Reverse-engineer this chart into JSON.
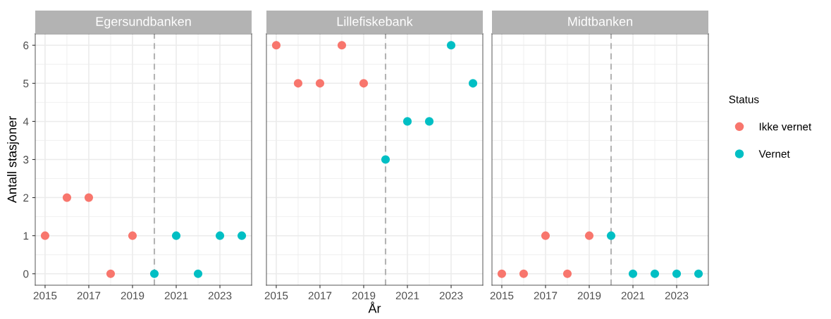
{
  "chart_data": [
    {
      "type": "scatter",
      "title": "Egersundbanken",
      "ylabel": "Antall stasjoner",
      "marker": "circle",
      "grid": true,
      "tick_labels": "xy",
      "legend": "right",
      "legend_title": "Status",
      "xlim": [
        2014.55,
        2024.45
      ],
      "ylim": [
        -0.3,
        6.3
      ],
      "xticks": [
        2015,
        2017,
        2019,
        2021,
        2023
      ],
      "yticks": [
        0,
        1,
        2,
        3,
        4,
        5,
        6
      ],
      "ref_lines": [
        {
          "axis": "x",
          "value": 2020,
          "color": "#b3b3b3",
          "line_style": "dashed"
        }
      ],
      "series": [
        {
          "name": "Ikke vernet",
          "color": "#f8766d",
          "x": [
            2015,
            2016,
            2017,
            2018,
            2019
          ],
          "values": [
            1,
            2,
            2,
            0,
            1
          ]
        },
        {
          "name": "Vernet",
          "color": "#00bfc4",
          "x": [
            2020,
            2021,
            2022,
            2023,
            2024
          ],
          "values": [
            0,
            1,
            0,
            1,
            1
          ]
        }
      ]
    },
    {
      "type": "scatter",
      "title": "Lillefiskebank",
      "xlabel": "År",
      "marker": "circle",
      "grid": true,
      "tick_labels": "x",
      "xlim": [
        2014.55,
        2024.45
      ],
      "ylim": [
        -0.3,
        6.3
      ],
      "xticks": [
        2015,
        2017,
        2019,
        2021,
        2023
      ],
      "yticks": [
        0,
        1,
        2,
        3,
        4,
        5,
        6
      ],
      "ref_lines": [
        {
          "axis": "x",
          "value": 2020,
          "color": "#b3b3b3",
          "line_style": "dashed"
        }
      ],
      "series": [
        {
          "color": "#f8766d",
          "x": [
            2015,
            2016,
            2017,
            2018,
            2019
          ],
          "values": [
            6,
            5,
            5,
            6,
            5
          ]
        },
        {
          "color": "#00bfc4",
          "x": [
            2020,
            2021,
            2022,
            2023,
            2024
          ],
          "values": [
            3,
            4,
            4,
            6,
            5
          ]
        }
      ]
    },
    {
      "type": "scatter",
      "title": "Midtbanken",
      "marker": "circle",
      "grid": true,
      "tick_labels": "x",
      "xlim": [
        2014.55,
        2024.45
      ],
      "ylim": [
        -0.3,
        6.3
      ],
      "xticks": [
        2015,
        2017,
        2019,
        2021,
        2023
      ],
      "yticks": [
        0,
        1,
        2,
        3,
        4,
        5,
        6
      ],
      "ref_lines": [
        {
          "axis": "x",
          "value": 2020,
          "color": "#b3b3b3",
          "line_style": "dashed"
        }
      ],
      "series": [
        {
          "color": "#f8766d",
          "x": [
            2015,
            2016,
            2017,
            2018,
            2019
          ],
          "values": [
            0,
            0,
            1,
            0,
            1
          ]
        },
        {
          "color": "#00bfc4",
          "x": [
            2020,
            2021,
            2022,
            2023,
            2024
          ],
          "values": [
            1,
            0,
            0,
            0,
            0
          ]
        }
      ]
    }
  ]
}
